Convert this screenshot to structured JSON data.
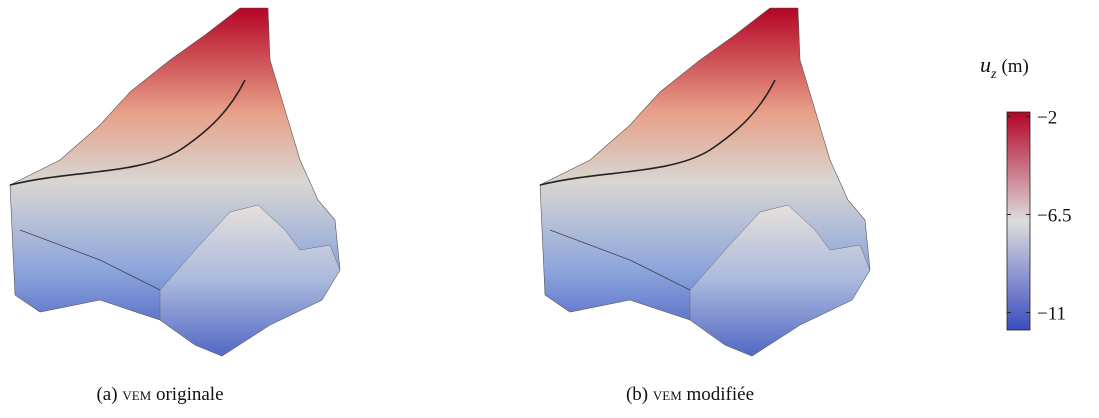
{
  "colorbar": {
    "symbol": "u",
    "subscript": "z",
    "unit": "(m)",
    "lim": [
      -11.8,
      -1.8
    ],
    "colors": [
      "#3b4cc0",
      "#dddddd",
      "#b40426"
    ],
    "ticks": [
      {
        "value": -2,
        "label": "−2"
      },
      {
        "value": -6.5,
        "label": "−6.5"
      },
      {
        "value": -11,
        "label": "−11"
      }
    ]
  },
  "captions": [
    {
      "prefix": "(a)",
      "acronym": "vem",
      "rest": "originale"
    },
    {
      "prefix": "(b)",
      "acronym": "vem",
      "rest": "modifiée"
    }
  ]
}
